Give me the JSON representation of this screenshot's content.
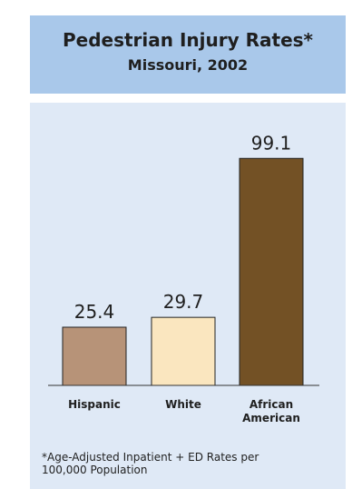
{
  "title": "Pedestrian Injury Rates*",
  "subtitle": "Missouri, 2002",
  "footnote": "*Age-Adjusted Inpatient + ED Rates per\n100,000 Population",
  "chart_data": {
    "type": "bar",
    "title": "Pedestrian Injury Rates*",
    "subtitle": "Missouri, 2002",
    "categories": [
      "Hispanic",
      "White",
      "African American"
    ],
    "category_lines": [
      [
        "Hispanic"
      ],
      [
        "White"
      ],
      [
        "African",
        "American"
      ]
    ],
    "values": [
      25.4,
      29.7,
      99.1
    ],
    "value_labels": [
      "25.4",
      "29.7",
      "99.1"
    ],
    "colors": [
      "#b79378",
      "#fae6bf",
      "#735125"
    ],
    "ylim": [
      0,
      100
    ],
    "grid": false,
    "legend": "none"
  }
}
